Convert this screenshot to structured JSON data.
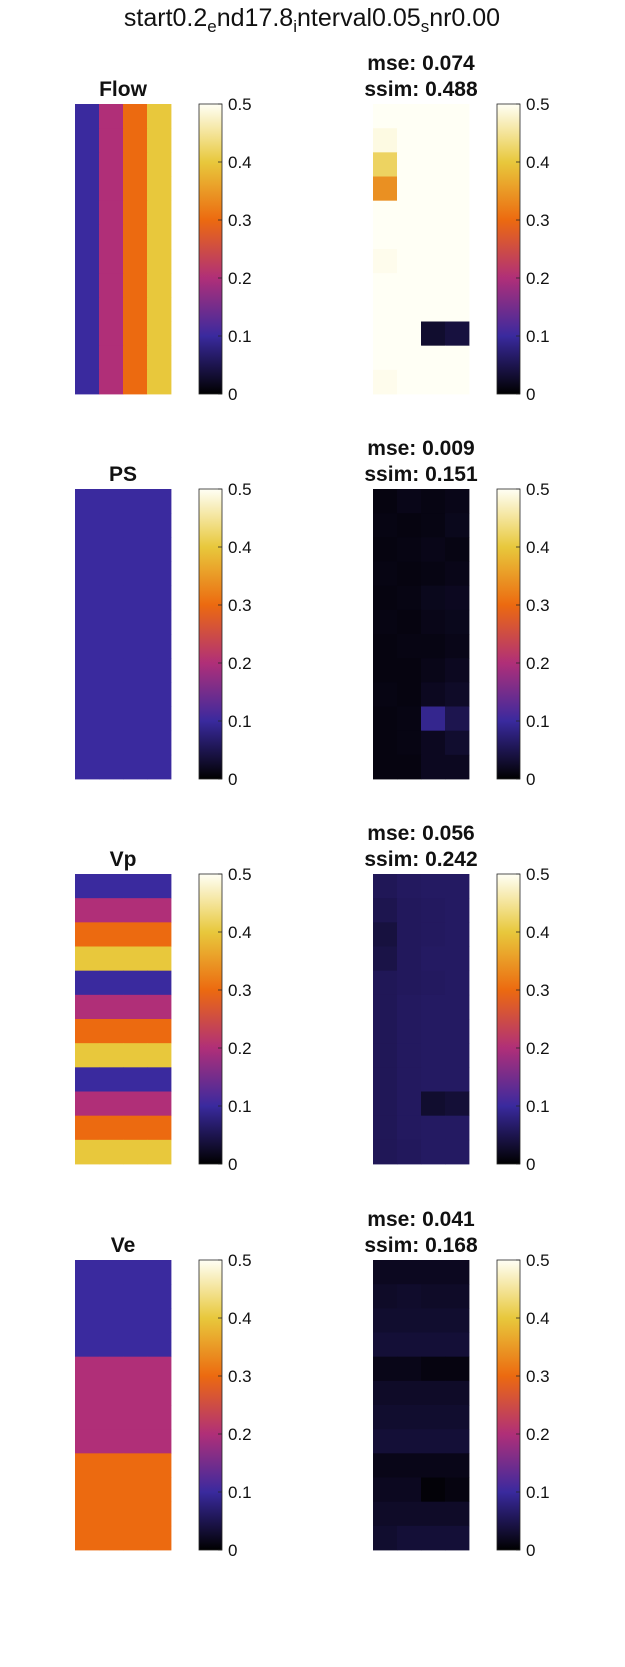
{
  "figure": {
    "suptitle_parts": [
      {
        "text": "start0.2",
        "sub": false
      },
      {
        "text": "e",
        "sub": true
      },
      {
        "text": "nd17.8",
        "sub": false
      },
      {
        "text": "i",
        "sub": true
      },
      {
        "text": "nterval0.05",
        "sub": false
      },
      {
        "text": "s",
        "sub": true
      },
      {
        "text": "nr0.00",
        "sub": false
      }
    ]
  },
  "colormap": {
    "name": "thermal (black-blue-purple-orange-yellow-white)",
    "stops": [
      {
        "v": 0.0,
        "color": "#000000"
      },
      {
        "v": 0.2,
        "color": "#3a2a9e"
      },
      {
        "v": 0.4,
        "color": "#b02f78"
      },
      {
        "v": 0.6,
        "color": "#ec6a10"
      },
      {
        "v": 0.8,
        "color": "#e8c83c"
      },
      {
        "v": 1.0,
        "color": "#fffff5"
      }
    ]
  },
  "chart_data": [
    {
      "type": "heatmap",
      "title": "Flow",
      "clim": [
        0,
        0.5
      ],
      "colorbar_ticks": [
        "0",
        "0.1",
        "0.2",
        "0.3",
        "0.4",
        "0.5"
      ],
      "cells": [
        [
          0.1,
          0.2,
          0.3,
          0.4
        ],
        [
          0.1,
          0.2,
          0.3,
          0.4
        ],
        [
          0.1,
          0.2,
          0.3,
          0.4
        ],
        [
          0.1,
          0.2,
          0.3,
          0.4
        ],
        [
          0.1,
          0.2,
          0.3,
          0.4
        ],
        [
          0.1,
          0.2,
          0.3,
          0.4
        ],
        [
          0.1,
          0.2,
          0.3,
          0.4
        ],
        [
          0.1,
          0.2,
          0.3,
          0.4
        ],
        [
          0.1,
          0.2,
          0.3,
          0.4
        ],
        [
          0.1,
          0.2,
          0.3,
          0.4
        ],
        [
          0.1,
          0.2,
          0.3,
          0.4
        ],
        [
          0.1,
          0.2,
          0.3,
          0.4
        ]
      ]
    },
    {
      "type": "heatmap",
      "title": "mse: 0.074\nssim: 0.488",
      "title_lines": [
        "mse: 0.074",
        "ssim: 0.488"
      ],
      "clim": [
        0,
        0.5
      ],
      "colorbar_ticks": [
        "0",
        "0.1",
        "0.2",
        "0.3",
        "0.4",
        "0.5"
      ],
      "cells": [
        [
          0.5,
          0.5,
          0.5,
          0.5
        ],
        [
          0.49,
          0.5,
          0.5,
          0.5
        ],
        [
          0.42,
          0.5,
          0.5,
          0.5
        ],
        [
          0.34,
          0.5,
          0.5,
          0.5
        ],
        [
          0.5,
          0.5,
          0.5,
          0.5
        ],
        [
          0.5,
          0.5,
          0.5,
          0.5
        ],
        [
          0.495,
          0.5,
          0.5,
          0.5
        ],
        [
          0.5,
          0.5,
          0.5,
          0.5
        ],
        [
          0.5,
          0.5,
          0.5,
          0.5
        ],
        [
          0.5,
          0.5,
          0.03,
          0.04
        ],
        [
          0.5,
          0.5,
          0.5,
          0.5
        ],
        [
          0.495,
          0.5,
          0.5,
          0.5
        ]
      ]
    },
    {
      "type": "heatmap",
      "title": "PS",
      "clim": [
        0,
        0.5
      ],
      "colorbar_ticks": [
        "0",
        "0.1",
        "0.2",
        "0.3",
        "0.4",
        "0.5"
      ],
      "cells": [
        [
          0.1,
          0.1,
          0.1,
          0.1
        ],
        [
          0.1,
          0.1,
          0.1,
          0.1
        ],
        [
          0.1,
          0.1,
          0.1,
          0.1
        ],
        [
          0.1,
          0.1,
          0.1,
          0.1
        ],
        [
          0.1,
          0.1,
          0.1,
          0.1
        ],
        [
          0.1,
          0.1,
          0.1,
          0.1
        ],
        [
          0.1,
          0.1,
          0.1,
          0.1
        ],
        [
          0.1,
          0.1,
          0.1,
          0.1
        ],
        [
          0.1,
          0.1,
          0.1,
          0.1
        ],
        [
          0.1,
          0.1,
          0.1,
          0.1
        ],
        [
          0.1,
          0.1,
          0.1,
          0.1
        ],
        [
          0.1,
          0.1,
          0.1,
          0.1
        ]
      ]
    },
    {
      "type": "heatmap",
      "title": "mse: 0.009\nssim: 0.151",
      "title_lines": [
        "mse: 0.009",
        "ssim: 0.151"
      ],
      "clim": [
        0,
        0.5
      ],
      "colorbar_ticks": [
        "0",
        "0.1",
        "0.2",
        "0.3",
        "0.4",
        "0.5"
      ],
      "cells": [
        [
          0.01,
          0.015,
          0.012,
          0.015
        ],
        [
          0.012,
          0.01,
          0.012,
          0.018
        ],
        [
          0.01,
          0.012,
          0.015,
          0.012
        ],
        [
          0.012,
          0.01,
          0.012,
          0.015
        ],
        [
          0.01,
          0.012,
          0.018,
          0.02
        ],
        [
          0.012,
          0.01,
          0.015,
          0.018
        ],
        [
          0.01,
          0.012,
          0.012,
          0.015
        ],
        [
          0.01,
          0.01,
          0.015,
          0.02
        ],
        [
          0.012,
          0.01,
          0.02,
          0.025
        ],
        [
          0.01,
          0.012,
          0.09,
          0.05
        ],
        [
          0.01,
          0.012,
          0.02,
          0.03
        ],
        [
          0.01,
          0.01,
          0.02,
          0.02
        ]
      ]
    },
    {
      "type": "heatmap",
      "title": "Vp",
      "clim": [
        0,
        0.5
      ],
      "colorbar_ticks": [
        "0",
        "0.1",
        "0.2",
        "0.3",
        "0.4",
        "0.5"
      ],
      "cells": [
        [
          0.1,
          0.1,
          0.1,
          0.1
        ],
        [
          0.2,
          0.2,
          0.2,
          0.2
        ],
        [
          0.3,
          0.3,
          0.3,
          0.3
        ],
        [
          0.4,
          0.4,
          0.4,
          0.4
        ],
        [
          0.1,
          0.1,
          0.1,
          0.1
        ],
        [
          0.2,
          0.2,
          0.2,
          0.2
        ],
        [
          0.3,
          0.3,
          0.3,
          0.3
        ],
        [
          0.4,
          0.4,
          0.4,
          0.4
        ],
        [
          0.1,
          0.1,
          0.1,
          0.1
        ],
        [
          0.2,
          0.2,
          0.2,
          0.2
        ],
        [
          0.3,
          0.3,
          0.3,
          0.3
        ],
        [
          0.4,
          0.4,
          0.4,
          0.4
        ]
      ]
    },
    {
      "type": "heatmap",
      "title": "mse: 0.056\nssim: 0.242",
      "title_lines": [
        "mse: 0.056",
        "ssim: 0.242"
      ],
      "clim": [
        0,
        0.5
      ],
      "colorbar_ticks": [
        "0",
        "0.1",
        "0.2",
        "0.3",
        "0.4",
        "0.5"
      ],
      "cells": [
        [
          0.055,
          0.06,
          0.062,
          0.062
        ],
        [
          0.05,
          0.058,
          0.06,
          0.062
        ],
        [
          0.04,
          0.058,
          0.06,
          0.062
        ],
        [
          0.045,
          0.058,
          0.062,
          0.062
        ],
        [
          0.055,
          0.058,
          0.06,
          0.062
        ],
        [
          0.055,
          0.06,
          0.062,
          0.062
        ],
        [
          0.055,
          0.06,
          0.062,
          0.062
        ],
        [
          0.055,
          0.06,
          0.062,
          0.062
        ],
        [
          0.055,
          0.06,
          0.062,
          0.062
        ],
        [
          0.055,
          0.06,
          0.03,
          0.035
        ],
        [
          0.055,
          0.06,
          0.062,
          0.062
        ],
        [
          0.055,
          0.058,
          0.062,
          0.062
        ]
      ]
    },
    {
      "type": "heatmap",
      "title": "Ve",
      "clim": [
        0,
        0.5
      ],
      "colorbar_ticks": [
        "0",
        "0.1",
        "0.2",
        "0.3",
        "0.4",
        "0.5"
      ],
      "cells": [
        [
          0.1,
          0.1,
          0.1,
          0.1
        ],
        [
          0.1,
          0.1,
          0.1,
          0.1
        ],
        [
          0.1,
          0.1,
          0.1,
          0.1
        ],
        [
          0.1,
          0.1,
          0.1,
          0.1
        ],
        [
          0.2,
          0.2,
          0.2,
          0.2
        ],
        [
          0.2,
          0.2,
          0.2,
          0.2
        ],
        [
          0.2,
          0.2,
          0.2,
          0.2
        ],
        [
          0.2,
          0.2,
          0.2,
          0.2
        ],
        [
          0.3,
          0.3,
          0.3,
          0.3
        ],
        [
          0.3,
          0.3,
          0.3,
          0.3
        ],
        [
          0.3,
          0.3,
          0.3,
          0.3
        ],
        [
          0.3,
          0.3,
          0.3,
          0.3
        ]
      ]
    },
    {
      "type": "heatmap",
      "title": "mse: 0.041\nssim: 0.168",
      "title_lines": [
        "mse: 0.041",
        "ssim: 0.168"
      ],
      "clim": [
        0,
        0.5
      ],
      "colorbar_ticks": [
        "0",
        "0.1",
        "0.2",
        "0.3",
        "0.4",
        "0.5"
      ],
      "cells": [
        [
          0.02,
          0.02,
          0.02,
          0.02
        ],
        [
          0.025,
          0.028,
          0.025,
          0.025
        ],
        [
          0.03,
          0.03,
          0.03,
          0.03
        ],
        [
          0.035,
          0.035,
          0.035,
          0.035
        ],
        [
          0.015,
          0.015,
          0.01,
          0.01
        ],
        [
          0.025,
          0.025,
          0.025,
          0.025
        ],
        [
          0.03,
          0.03,
          0.03,
          0.03
        ],
        [
          0.035,
          0.035,
          0.035,
          0.035
        ],
        [
          0.015,
          0.015,
          0.015,
          0.015
        ],
        [
          0.02,
          0.02,
          0.005,
          0.01
        ],
        [
          0.025,
          0.025,
          0.025,
          0.025
        ],
        [
          0.03,
          0.035,
          0.035,
          0.035
        ]
      ]
    }
  ]
}
